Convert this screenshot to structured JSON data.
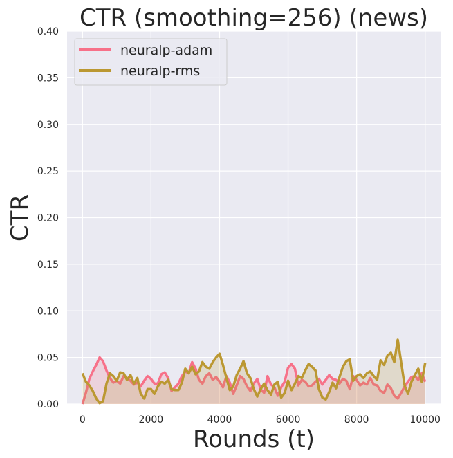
{
  "chart_data": {
    "type": "line",
    "title": "CTR (smoothing=256) (news)",
    "xlabel": "Rounds (t)",
    "ylabel": "CTR",
    "xlim": [
      -450,
      10450
    ],
    "ylim": [
      0,
      0.4
    ],
    "xticks": [
      0,
      2000,
      4000,
      6000,
      8000,
      10000
    ],
    "yticks": [
      0.0,
      0.05,
      0.1,
      0.15,
      0.2,
      0.25,
      0.3,
      0.35,
      0.4
    ],
    "xtick_labels": [
      "0",
      "2000",
      "4000",
      "6000",
      "8000",
      "10000"
    ],
    "ytick_labels": [
      "0.00",
      "0.05",
      "0.10",
      "0.15",
      "0.20",
      "0.25",
      "0.30",
      "0.35",
      "0.40"
    ],
    "grid": true,
    "legend_position": "top-left",
    "background": "#eaeaf2",
    "series": [
      {
        "name": "neuralp-adam",
        "color": "#f77189",
        "fill": true,
        "x": [
          0,
          100,
          200,
          300,
          400,
          500,
          600,
          700,
          800,
          900,
          1000,
          1100,
          1200,
          1300,
          1400,
          1500,
          1600,
          1700,
          1800,
          1900,
          2000,
          2100,
          2200,
          2300,
          2400,
          2500,
          2600,
          2700,
          2800,
          2900,
          3000,
          3100,
          3200,
          3300,
          3400,
          3500,
          3600,
          3700,
          3800,
          3900,
          4000,
          4100,
          4200,
          4300,
          4400,
          4500,
          4600,
          4700,
          4800,
          4900,
          5000,
          5100,
          5200,
          5300,
          5400,
          5500,
          5600,
          5700,
          5800,
          5900,
          6000,
          6100,
          6200,
          6300,
          6400,
          6500,
          6600,
          6700,
          6800,
          6900,
          7000,
          7100,
          7200,
          7300,
          7400,
          7500,
          7600,
          7700,
          7800,
          7900,
          8000,
          8100,
          8200,
          8300,
          8400,
          8500,
          8600,
          8700,
          8800,
          8900,
          9000,
          9100,
          9200,
          9300,
          9400,
          9500,
          9600,
          9700,
          9800,
          9900,
          10000
        ],
        "values": [
          0.0,
          0.012,
          0.027,
          0.035,
          0.042,
          0.05,
          0.046,
          0.036,
          0.028,
          0.023,
          0.025,
          0.022,
          0.03,
          0.028,
          0.025,
          0.021,
          0.023,
          0.019,
          0.025,
          0.03,
          0.027,
          0.022,
          0.022,
          0.032,
          0.034,
          0.028,
          0.014,
          0.018,
          0.022,
          0.03,
          0.035,
          0.033,
          0.045,
          0.038,
          0.026,
          0.022,
          0.03,
          0.033,
          0.026,
          0.029,
          0.024,
          0.018,
          0.03,
          0.023,
          0.011,
          0.02,
          0.03,
          0.027,
          0.019,
          0.014,
          0.022,
          0.027,
          0.016,
          0.012,
          0.03,
          0.021,
          0.018,
          0.009,
          0.018,
          0.024,
          0.039,
          0.043,
          0.038,
          0.02,
          0.026,
          0.024,
          0.019,
          0.02,
          0.024,
          0.027,
          0.021,
          0.026,
          0.031,
          0.027,
          0.026,
          0.022,
          0.027,
          0.025,
          0.016,
          0.03,
          0.026,
          0.02,
          0.023,
          0.021,
          0.028,
          0.021,
          0.02,
          0.014,
          0.012,
          0.021,
          0.017,
          0.009,
          0.006,
          0.012,
          0.019,
          0.024,
          0.029,
          0.03,
          0.026,
          0.033,
          0.024
        ]
      },
      {
        "name": "neuralp-rms",
        "color": "#bb9832",
        "fill": true,
        "x": [
          0,
          100,
          200,
          300,
          400,
          500,
          600,
          700,
          800,
          900,
          1000,
          1100,
          1200,
          1300,
          1400,
          1500,
          1600,
          1700,
          1800,
          1900,
          2000,
          2100,
          2200,
          2300,
          2400,
          2500,
          2600,
          2700,
          2800,
          2900,
          3000,
          3100,
          3200,
          3300,
          3400,
          3500,
          3600,
          3700,
          3800,
          3900,
          4000,
          4100,
          4200,
          4300,
          4400,
          4500,
          4600,
          4700,
          4800,
          4900,
          5000,
          5100,
          5200,
          5300,
          5400,
          5500,
          5600,
          5700,
          5800,
          5900,
          6000,
          6100,
          6200,
          6300,
          6400,
          6500,
          6600,
          6700,
          6800,
          6900,
          7000,
          7100,
          7200,
          7300,
          7400,
          7500,
          7600,
          7700,
          7800,
          7900,
          8000,
          8100,
          8200,
          8300,
          8400,
          8500,
          8600,
          8700,
          8800,
          8900,
          9000,
          9100,
          9200,
          9300,
          9400,
          9500,
          9600,
          9700,
          9800,
          9900,
          10000
        ],
        "values": [
          0.033,
          0.024,
          0.02,
          0.014,
          0.006,
          0.001,
          0.003,
          0.022,
          0.033,
          0.03,
          0.025,
          0.034,
          0.033,
          0.026,
          0.031,
          0.022,
          0.028,
          0.011,
          0.006,
          0.016,
          0.016,
          0.011,
          0.019,
          0.024,
          0.022,
          0.026,
          0.016,
          0.015,
          0.015,
          0.023,
          0.038,
          0.033,
          0.04,
          0.032,
          0.035,
          0.045,
          0.04,
          0.038,
          0.045,
          0.05,
          0.054,
          0.042,
          0.028,
          0.015,
          0.019,
          0.031,
          0.038,
          0.046,
          0.033,
          0.028,
          0.016,
          0.008,
          0.016,
          0.022,
          0.015,
          0.01,
          0.021,
          0.024,
          0.007,
          0.012,
          0.025,
          0.015,
          0.022,
          0.03,
          0.028,
          0.036,
          0.043,
          0.04,
          0.036,
          0.016,
          0.007,
          0.005,
          0.013,
          0.023,
          0.017,
          0.029,
          0.04,
          0.046,
          0.048,
          0.025,
          0.03,
          0.032,
          0.028,
          0.033,
          0.035,
          0.03,
          0.026,
          0.047,
          0.042,
          0.052,
          0.055,
          0.045,
          0.069,
          0.045,
          0.02,
          0.011,
          0.024,
          0.031,
          0.038,
          0.024,
          0.044
        ]
      }
    ]
  }
}
